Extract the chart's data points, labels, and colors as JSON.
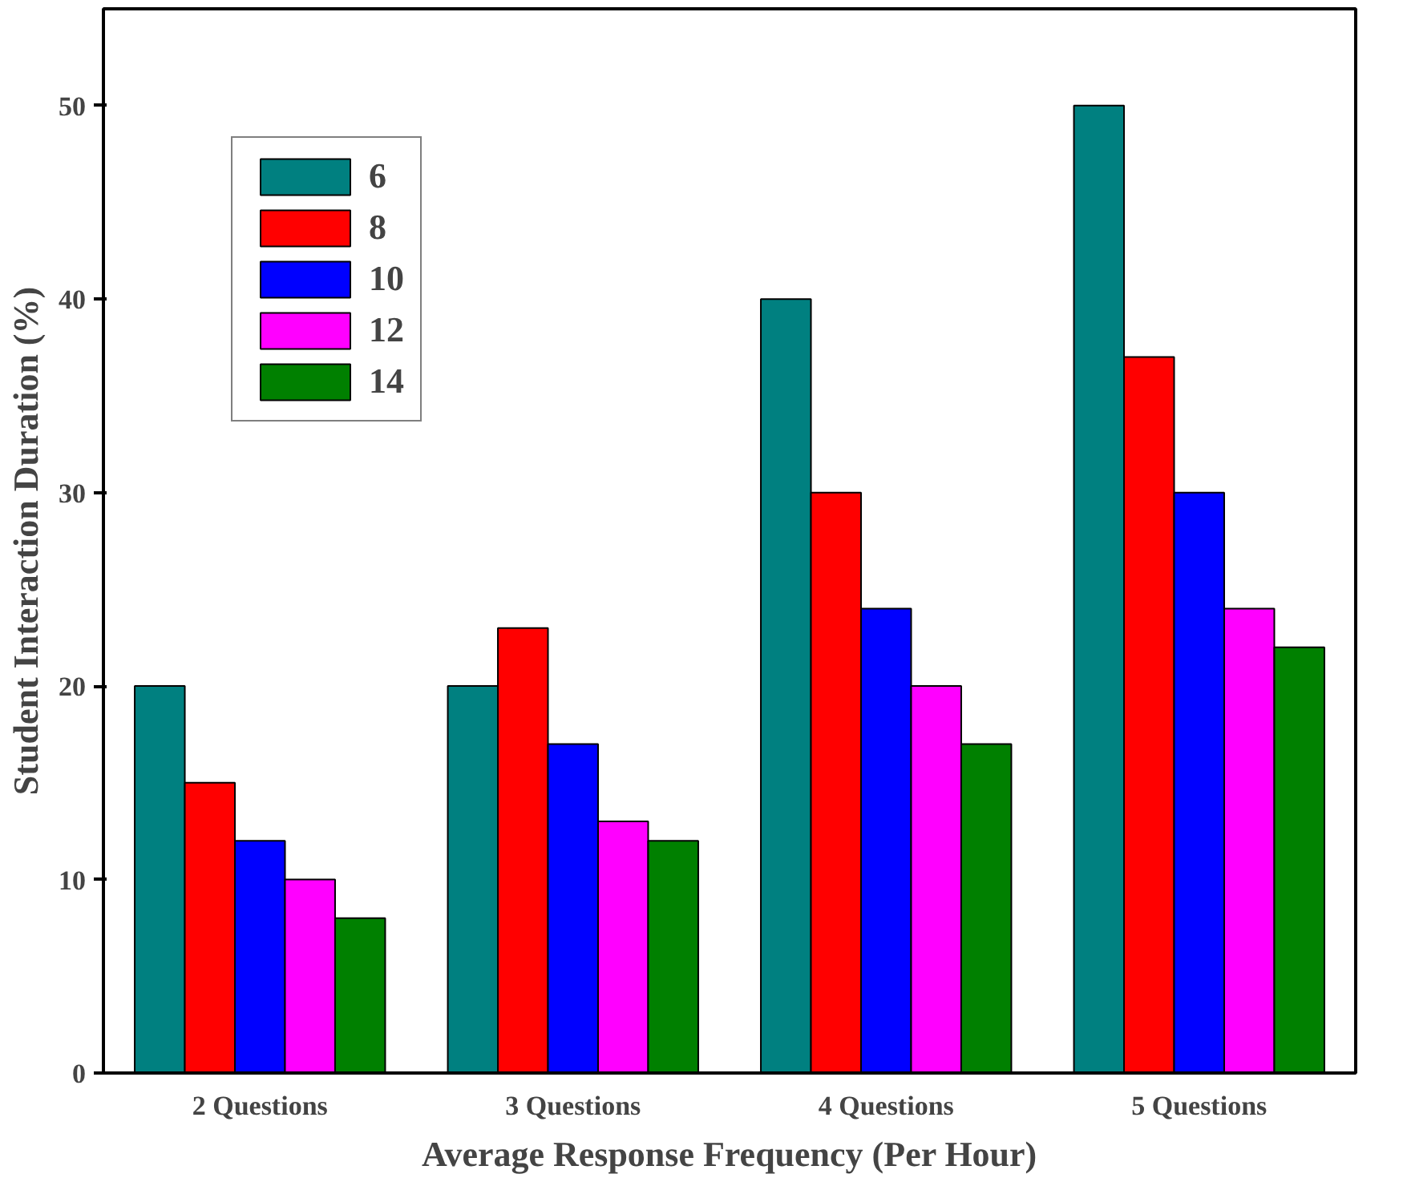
{
  "chart_data": {
    "type": "bar",
    "xlabel": "Average Response Frequency (Per Hour)",
    "ylabel": "Student Interaction Duration (%)",
    "categories": [
      "2 Questions",
      "3 Questions",
      "4 Questions",
      "5 Questions"
    ],
    "series": [
      {
        "name": "6",
        "color": "#008080",
        "values": [
          20,
          20,
          40,
          50
        ]
      },
      {
        "name": "8",
        "color": "#ff0000",
        "values": [
          15,
          23,
          30,
          37
        ]
      },
      {
        "name": "10",
        "color": "#0000ff",
        "values": [
          12,
          17,
          24,
          30
        ]
      },
      {
        "name": "12",
        "color": "#ff00ff",
        "values": [
          10,
          13,
          20,
          24
        ]
      },
      {
        "name": "14",
        "color": "#008000",
        "values": [
          8,
          12,
          17,
          22
        ]
      }
    ],
    "ylim": [
      0,
      55
    ],
    "yticks": [
      0,
      10,
      20,
      30,
      40,
      50
    ],
    "grid": false,
    "legend": "top left"
  }
}
